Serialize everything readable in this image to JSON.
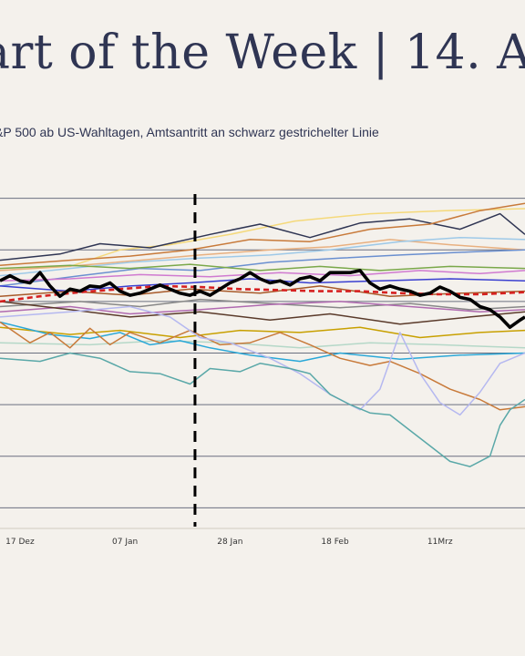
{
  "header": {
    "title": "art of the Week | 14. A",
    "subtitle": "&P 500 ab US-Wahltagen, Amtsantritt an schwarz gestrichelter Linie"
  },
  "chart_data": {
    "type": "line",
    "x_tick_labels": [
      "17 Dez",
      "07 Jan",
      "28 Jan",
      "18 Feb",
      "11Mrz"
    ],
    "x_tick_days": [
      0,
      21,
      42,
      63,
      84
    ],
    "x_range_days": [
      -4,
      101
    ],
    "y_range": [
      -22,
      12
    ],
    "y_gridlines": [
      10,
      5,
      0,
      -5,
      -10,
      -15,
      -20
    ],
    "inauguration_day": 35,
    "highlight": {
      "color": "#000000"
    },
    "average": {
      "color": "#d62020",
      "style": "dashed"
    },
    "series": [
      {
        "color": "#f5d97a",
        "points": [
          [
            -4,
            3.0
          ],
          [
            10,
            3.4
          ],
          [
            20,
            5.0
          ],
          [
            30,
            5.5
          ],
          [
            42,
            6.5
          ],
          [
            55,
            7.8
          ],
          [
            70,
            8.5
          ],
          [
            85,
            8.8
          ],
          [
            101,
            9.0
          ]
        ]
      },
      {
        "color": "#2f3553",
        "points": [
          [
            -4,
            4.0
          ],
          [
            8,
            4.6
          ],
          [
            16,
            5.6
          ],
          [
            26,
            5.2
          ],
          [
            38,
            6.5
          ],
          [
            48,
            7.5
          ],
          [
            58,
            6.2
          ],
          [
            68,
            7.6
          ],
          [
            78,
            8.0
          ],
          [
            88,
            7.0
          ],
          [
            96,
            8.5
          ],
          [
            101,
            6.5
          ]
        ]
      },
      {
        "color": "#c87a3a",
        "points": [
          [
            -4,
            3.5
          ],
          [
            10,
            4.0
          ],
          [
            22,
            4.4
          ],
          [
            34,
            5.0
          ],
          [
            46,
            6.0
          ],
          [
            58,
            5.8
          ],
          [
            70,
            7.0
          ],
          [
            82,
            7.5
          ],
          [
            92,
            8.8
          ],
          [
            101,
            9.5
          ]
        ]
      },
      {
        "color": "#e8b080",
        "points": [
          [
            -4,
            3.0
          ],
          [
            12,
            3.5
          ],
          [
            24,
            4.0
          ],
          [
            36,
            4.5
          ],
          [
            50,
            5.0
          ],
          [
            62,
            5.3
          ],
          [
            74,
            6.0
          ],
          [
            86,
            5.5
          ],
          [
            101,
            5.0
          ]
        ]
      },
      {
        "color": "#9ec9e8",
        "points": [
          [
            -4,
            2.5
          ],
          [
            10,
            3.2
          ],
          [
            22,
            3.8
          ],
          [
            36,
            4.2
          ],
          [
            50,
            4.5
          ],
          [
            62,
            5.0
          ],
          [
            76,
            5.8
          ],
          [
            88,
            6.2
          ],
          [
            101,
            6.0
          ]
        ]
      },
      {
        "color": "#6a8fd0",
        "points": [
          [
            -4,
            1.5
          ],
          [
            12,
            2.5
          ],
          [
            24,
            3.2
          ],
          [
            36,
            3.0
          ],
          [
            50,
            3.8
          ],
          [
            64,
            4.2
          ],
          [
            76,
            4.5
          ],
          [
            90,
            4.8
          ],
          [
            101,
            5.0
          ]
        ]
      },
      {
        "color": "#7aa84a",
        "points": [
          [
            -4,
            3.2
          ],
          [
            10,
            3.5
          ],
          [
            22,
            3.2
          ],
          [
            34,
            3.6
          ],
          [
            48,
            3.0
          ],
          [
            60,
            3.4
          ],
          [
            72,
            3.0
          ],
          [
            86,
            3.4
          ],
          [
            101,
            3.2
          ]
        ]
      },
      {
        "color": "#d07ad0",
        "points": [
          [
            -4,
            2.0
          ],
          [
            10,
            2.2
          ],
          [
            24,
            2.6
          ],
          [
            38,
            2.4
          ],
          [
            52,
            2.8
          ],
          [
            66,
            2.5
          ],
          [
            80,
            3.0
          ],
          [
            92,
            2.7
          ],
          [
            101,
            3.0
          ]
        ]
      },
      {
        "color": "#3a3fd0",
        "points": [
          [
            -4,
            1.5
          ],
          [
            10,
            1.0
          ],
          [
            22,
            1.5
          ],
          [
            34,
            1.8
          ],
          [
            46,
            2.2
          ],
          [
            58,
            1.8
          ],
          [
            72,
            2.0
          ],
          [
            86,
            2.2
          ],
          [
            101,
            2.0
          ]
        ]
      },
      {
        "color": "#a85a2a",
        "points": [
          [
            -4,
            0.5
          ],
          [
            10,
            1.0
          ],
          [
            22,
            0.6
          ],
          [
            34,
            1.2
          ],
          [
            48,
            0.8
          ],
          [
            60,
            1.5
          ],
          [
            74,
            0.5
          ],
          [
            88,
            0.8
          ],
          [
            101,
            1.0
          ]
        ]
      },
      {
        "color": "#888888",
        "points": [
          [
            -4,
            -0.5
          ],
          [
            12,
            0.0
          ],
          [
            24,
            -0.5
          ],
          [
            36,
            0.2
          ],
          [
            50,
            -0.2
          ],
          [
            64,
            -0.6
          ],
          [
            78,
            -0.2
          ],
          [
            90,
            -0.8
          ],
          [
            101,
            -0.5
          ]
        ]
      },
      {
        "color": "#b06ab0",
        "points": [
          [
            -4,
            -1.0
          ],
          [
            10,
            -0.5
          ],
          [
            22,
            -1.2
          ],
          [
            36,
            -0.8
          ],
          [
            50,
            -0.3
          ],
          [
            64,
            0.0
          ],
          [
            78,
            -0.5
          ],
          [
            92,
            -1.0
          ],
          [
            101,
            -0.8
          ]
        ]
      },
      {
        "color": "#5a3a2a",
        "points": [
          [
            -4,
            0.0
          ],
          [
            10,
            -0.8
          ],
          [
            22,
            -1.5
          ],
          [
            36,
            -1.0
          ],
          [
            50,
            -1.8
          ],
          [
            62,
            -1.2
          ],
          [
            76,
            -2.2
          ],
          [
            90,
            -1.5
          ],
          [
            101,
            -1.0
          ]
        ]
      },
      {
        "color": "#c8a000",
        "points": [
          [
            -4,
            -2.5
          ],
          [
            10,
            -3.2
          ],
          [
            20,
            -2.8
          ],
          [
            32,
            -3.5
          ],
          [
            44,
            -2.8
          ],
          [
            56,
            -3.0
          ],
          [
            68,
            -2.5
          ],
          [
            80,
            -3.5
          ],
          [
            92,
            -3.0
          ],
          [
            101,
            -2.8
          ]
        ]
      },
      {
        "color": "#b5d8c8",
        "points": [
          [
            -4,
            -4.0
          ],
          [
            14,
            -4.2
          ],
          [
            28,
            -3.8
          ],
          [
            42,
            -4.0
          ],
          [
            56,
            -4.5
          ],
          [
            70,
            -4.0
          ],
          [
            84,
            -4.2
          ],
          [
            101,
            -4.5
          ]
        ]
      },
      {
        "color": "#2aa8d8",
        "points": [
          [
            -4,
            -2.0
          ],
          [
            6,
            -3.2
          ],
          [
            14,
            -3.6
          ],
          [
            20,
            -3.0
          ],
          [
            26,
            -4.2
          ],
          [
            32,
            -3.8
          ],
          [
            38,
            -4.5
          ],
          [
            46,
            -5.2
          ],
          [
            56,
            -5.8
          ],
          [
            64,
            -5.0
          ],
          [
            76,
            -5.6
          ],
          [
            88,
            -5.2
          ],
          [
            101,
            -5.0
          ]
        ]
      },
      {
        "color": "#c87a3a",
        "points": [
          [
            -4,
            -2.0
          ],
          [
            2,
            -4.0
          ],
          [
            6,
            -3.0
          ],
          [
            10,
            -4.5
          ],
          [
            14,
            -2.6
          ],
          [
            18,
            -4.2
          ],
          [
            22,
            -3.0
          ],
          [
            28,
            -4.0
          ],
          [
            34,
            -2.8
          ],
          [
            40,
            -4.2
          ],
          [
            46,
            -4.0
          ],
          [
            52,
            -3.0
          ],
          [
            58,
            -4.2
          ],
          [
            64,
            -5.5
          ],
          [
            70,
            -6.2
          ],
          [
            74,
            -5.8
          ],
          [
            80,
            -7.0
          ],
          [
            86,
            -8.5
          ],
          [
            92,
            -9.5
          ],
          [
            96,
            -10.5
          ],
          [
            101,
            -10.2
          ]
        ]
      },
      {
        "color": "#b5b8f0",
        "points": [
          [
            -4,
            -1.5
          ],
          [
            10,
            -1.0
          ],
          [
            22,
            -0.5
          ],
          [
            30,
            -1.5
          ],
          [
            36,
            -3.5
          ],
          [
            42,
            -4.0
          ],
          [
            50,
            -5.5
          ],
          [
            56,
            -7.0
          ],
          [
            62,
            -9.0
          ],
          [
            68,
            -10.5
          ],
          [
            72,
            -8.5
          ],
          [
            76,
            -3.0
          ],
          [
            80,
            -7.0
          ],
          [
            84,
            -9.8
          ],
          [
            88,
            -11.0
          ],
          [
            92,
            -8.8
          ],
          [
            96,
            -6.0
          ],
          [
            101,
            -5.0
          ]
        ]
      },
      {
        "color": "#5aa8a8",
        "points": [
          [
            -4,
            -5.5
          ],
          [
            4,
            -5.8
          ],
          [
            10,
            -5.0
          ],
          [
            16,
            -5.5
          ],
          [
            22,
            -6.8
          ],
          [
            28,
            -7.0
          ],
          [
            34,
            -8.0
          ],
          [
            38,
            -6.5
          ],
          [
            44,
            -6.8
          ],
          [
            48,
            -6.0
          ],
          [
            54,
            -6.5
          ],
          [
            58,
            -7.0
          ],
          [
            62,
            -9.0
          ],
          [
            66,
            -10.0
          ],
          [
            70,
            -10.8
          ],
          [
            74,
            -11.0
          ],
          [
            78,
            -12.5
          ],
          [
            82,
            -14.0
          ],
          [
            86,
            -15.5
          ],
          [
            90,
            -16.0
          ],
          [
            94,
            -15.0
          ],
          [
            96,
            -12.0
          ],
          [
            98,
            -10.5
          ],
          [
            101,
            -9.5
          ]
        ]
      }
    ],
    "highlight_points": [
      [
        -4,
        2.0
      ],
      [
        -2,
        2.5
      ],
      [
        0,
        2.0
      ],
      [
        2,
        1.8
      ],
      [
        4,
        2.8
      ],
      [
        6,
        1.5
      ],
      [
        8,
        0.5
      ],
      [
        10,
        1.2
      ],
      [
        12,
        1.0
      ],
      [
        14,
        1.5
      ],
      [
        16,
        1.4
      ],
      [
        18,
        1.8
      ],
      [
        20,
        1.0
      ],
      [
        22,
        0.6
      ],
      [
        24,
        0.8
      ],
      [
        26,
        1.2
      ],
      [
        28,
        1.6
      ],
      [
        30,
        1.2
      ],
      [
        32,
        0.8
      ],
      [
        34,
        0.6
      ],
      [
        36,
        1.0
      ],
      [
        38,
        0.6
      ],
      [
        40,
        1.2
      ],
      [
        42,
        1.8
      ],
      [
        44,
        2.2
      ],
      [
        46,
        2.8
      ],
      [
        48,
        2.2
      ],
      [
        50,
        1.8
      ],
      [
        52,
        2.0
      ],
      [
        54,
        1.6
      ],
      [
        56,
        2.2
      ],
      [
        58,
        2.4
      ],
      [
        60,
        2.0
      ],
      [
        62,
        2.8
      ],
      [
        64,
        2.8
      ],
      [
        66,
        2.8
      ],
      [
        68,
        3.0
      ],
      [
        70,
        1.8
      ],
      [
        72,
        1.2
      ],
      [
        74,
        1.5
      ],
      [
        76,
        1.2
      ],
      [
        78,
        1.0
      ],
      [
        80,
        0.6
      ],
      [
        82,
        0.8
      ],
      [
        84,
        1.4
      ],
      [
        86,
        1.0
      ],
      [
        88,
        0.4
      ],
      [
        90,
        0.2
      ],
      [
        92,
        -0.5
      ],
      [
        94,
        -0.8
      ],
      [
        96,
        -1.5
      ],
      [
        98,
        -2.5
      ],
      [
        100,
        -1.8
      ],
      [
        101,
        -1.5
      ]
    ],
    "average_points": [
      [
        -4,
        0.0
      ],
      [
        4,
        0.5
      ],
      [
        12,
        0.9
      ],
      [
        20,
        1.2
      ],
      [
        28,
        1.5
      ],
      [
        36,
        1.4
      ],
      [
        44,
        1.2
      ],
      [
        52,
        1.1
      ],
      [
        60,
        1.0
      ],
      [
        68,
        1.0
      ],
      [
        76,
        0.8
      ],
      [
        84,
        0.7
      ],
      [
        92,
        0.7
      ],
      [
        101,
        0.9
      ]
    ]
  }
}
